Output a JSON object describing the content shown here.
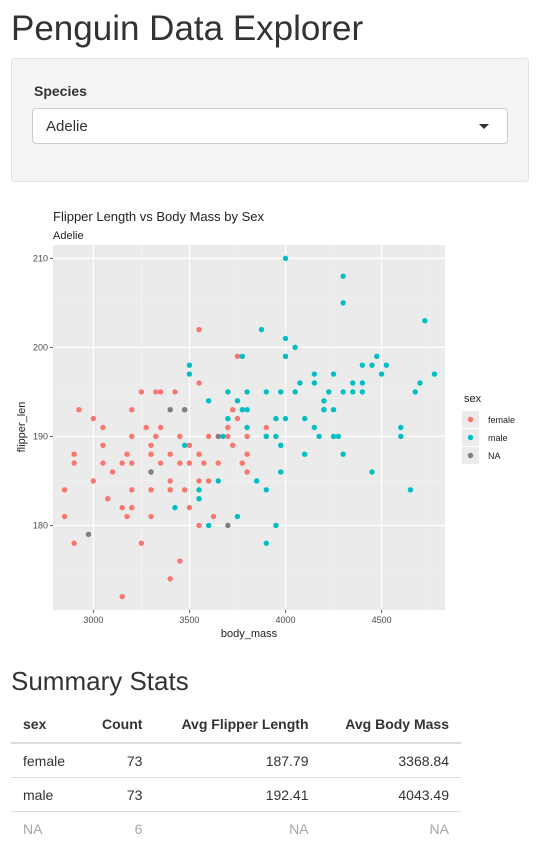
{
  "app": {
    "title": "Penguin Data Explorer"
  },
  "controls": {
    "species_label": "Species",
    "species_selected": "Adelie",
    "caret_icon": "caret-down-icon"
  },
  "summary": {
    "title": "Summary Stats",
    "headers": [
      "sex",
      "Count",
      "Avg Flipper Length",
      "Avg Body Mass"
    ],
    "rows": [
      [
        "female",
        "73",
        "187.79",
        "3368.84"
      ],
      [
        "male",
        "73",
        "192.41",
        "4043.49"
      ],
      [
        "NA",
        "6",
        "NA",
        "NA"
      ]
    ]
  },
  "chart_data": {
    "type": "scatter",
    "title": "Flipper Length vs Body Mass by Sex",
    "subtitle": "Adelie",
    "xlabel": "body_mass",
    "ylabel": "flipper_len",
    "xlim": [
      2790,
      4830
    ],
    "ylim": [
      170.5,
      211.5
    ],
    "xticks": [
      3000,
      3500,
      4000,
      4500
    ],
    "yticks": [
      180,
      190,
      200,
      210
    ],
    "background": "#ebebeb",
    "grid": true,
    "legend": {
      "title": "sex",
      "position": "right"
    },
    "series": [
      {
        "name": "female",
        "color": "#f8766d",
        "points": [
          [
            2850,
            184
          ],
          [
            2850,
            181
          ],
          [
            2900,
            178
          ],
          [
            2900,
            188
          ],
          [
            2900,
            187
          ],
          [
            2925,
            193
          ],
          [
            3000,
            185
          ],
          [
            3000,
            192
          ],
          [
            3050,
            191
          ],
          [
            3050,
            189
          ],
          [
            3050,
            187
          ],
          [
            3075,
            183
          ],
          [
            3100,
            186
          ],
          [
            3150,
            187
          ],
          [
            3150,
            182
          ],
          [
            3150,
            172
          ],
          [
            3175,
            181
          ],
          [
            3175,
            188
          ],
          [
            3200,
            193
          ],
          [
            3200,
            190
          ],
          [
            3200,
            187
          ],
          [
            3200,
            184
          ],
          [
            3200,
            182
          ],
          [
            3250,
            195
          ],
          [
            3250,
            178
          ],
          [
            3275,
            191
          ],
          [
            3300,
            186
          ],
          [
            3300,
            184
          ],
          [
            3300,
            181
          ],
          [
            3300,
            188
          ],
          [
            3300,
            189
          ],
          [
            3325,
            190
          ],
          [
            3325,
            195
          ],
          [
            3350,
            195
          ],
          [
            3350,
            191
          ],
          [
            3350,
            187
          ],
          [
            3400,
            174
          ],
          [
            3400,
            193
          ],
          [
            3400,
            184
          ],
          [
            3400,
            185
          ],
          [
            3400,
            188
          ],
          [
            3425,
            195
          ],
          [
            3450,
            176
          ],
          [
            3450,
            187
          ],
          [
            3450,
            190
          ],
          [
            3475,
            193
          ],
          [
            3475,
            184
          ],
          [
            3500,
            189
          ],
          [
            3500,
            187
          ],
          [
            3500,
            182
          ],
          [
            3550,
            188
          ],
          [
            3550,
            185
          ],
          [
            3550,
            196
          ],
          [
            3550,
            202
          ],
          [
            3550,
            180
          ],
          [
            3575,
            187
          ],
          [
            3600,
            190
          ],
          [
            3600,
            185
          ],
          [
            3625,
            181
          ],
          [
            3650,
            190
          ],
          [
            3650,
            187
          ],
          [
            3700,
            190
          ],
          [
            3700,
            191
          ],
          [
            3725,
            193
          ],
          [
            3725,
            189
          ],
          [
            3750,
            199
          ],
          [
            3750,
            192
          ],
          [
            3775,
            187
          ],
          [
            3800,
            188
          ],
          [
            3800,
            190
          ],
          [
            3800,
            186
          ],
          [
            3900,
            191
          ],
          [
            3900,
            190
          ]
        ]
      },
      {
        "name": "male",
        "color": "#00bfc4",
        "points": [
          [
            3425,
            182
          ],
          [
            3475,
            189
          ],
          [
            3500,
            198
          ],
          [
            3500,
            197
          ],
          [
            3550,
            184
          ],
          [
            3550,
            183
          ],
          [
            3600,
            180
          ],
          [
            3650,
            185
          ],
          [
            3675,
            190
          ],
          [
            3700,
            195
          ],
          [
            3700,
            192
          ],
          [
            3750,
            181
          ],
          [
            3750,
            194
          ],
          [
            3775,
            193
          ],
          [
            3775,
            199
          ],
          [
            3800,
            195
          ],
          [
            3800,
            193
          ],
          [
            3800,
            191
          ],
          [
            3850,
            185
          ],
          [
            3875,
            202
          ],
          [
            3900,
            178
          ],
          [
            3900,
            184
          ],
          [
            3900,
            190
          ],
          [
            3900,
            195
          ],
          [
            3950,
            180
          ],
          [
            3950,
            192
          ],
          [
            3950,
            190
          ],
          [
            3975,
            186
          ],
          [
            3975,
            195
          ],
          [
            3975,
            189
          ],
          [
            4000,
            199
          ],
          [
            4000,
            210
          ],
          [
            4000,
            201
          ],
          [
            4050,
            200
          ],
          [
            4075,
            196
          ],
          [
            4100,
            188
          ],
          [
            4150,
            196
          ],
          [
            4150,
            197
          ],
          [
            4200,
            193
          ],
          [
            4200,
            194
          ],
          [
            4225,
            195
          ],
          [
            4250,
            197
          ],
          [
            4250,
            190
          ],
          [
            4275,
            190
          ],
          [
            4300,
            188
          ],
          [
            4300,
            195
          ],
          [
            4300,
            208
          ],
          [
            4300,
            205
          ],
          [
            4350,
            196
          ],
          [
            4400,
            196
          ],
          [
            4400,
            198
          ],
          [
            4450,
            198
          ],
          [
            4450,
            186
          ],
          [
            4475,
            199
          ],
          [
            4500,
            197
          ],
          [
            4600,
            190
          ],
          [
            4600,
            191
          ],
          [
            4650,
            184
          ],
          [
            4675,
            195
          ],
          [
            4700,
            196
          ],
          [
            4725,
            203
          ],
          [
            4775,
            197
          ],
          [
            4000,
            192
          ],
          [
            4050,
            195
          ],
          [
            4100,
            192
          ],
          [
            4150,
            191
          ],
          [
            4175,
            190
          ],
          [
            4200,
            193
          ],
          [
            4250,
            193
          ],
          [
            4350,
            195
          ],
          [
            4400,
            195
          ],
          [
            4525,
            198
          ],
          [
            3600,
            194
          ]
        ]
      },
      {
        "name": "NA",
        "color": "#7f7f7f",
        "points": [
          [
            2975,
            179
          ],
          [
            3300,
            186
          ],
          [
            3475,
            193
          ],
          [
            3650,
            190
          ],
          [
            3700,
            180
          ],
          [
            3400,
            193
          ]
        ]
      }
    ]
  }
}
